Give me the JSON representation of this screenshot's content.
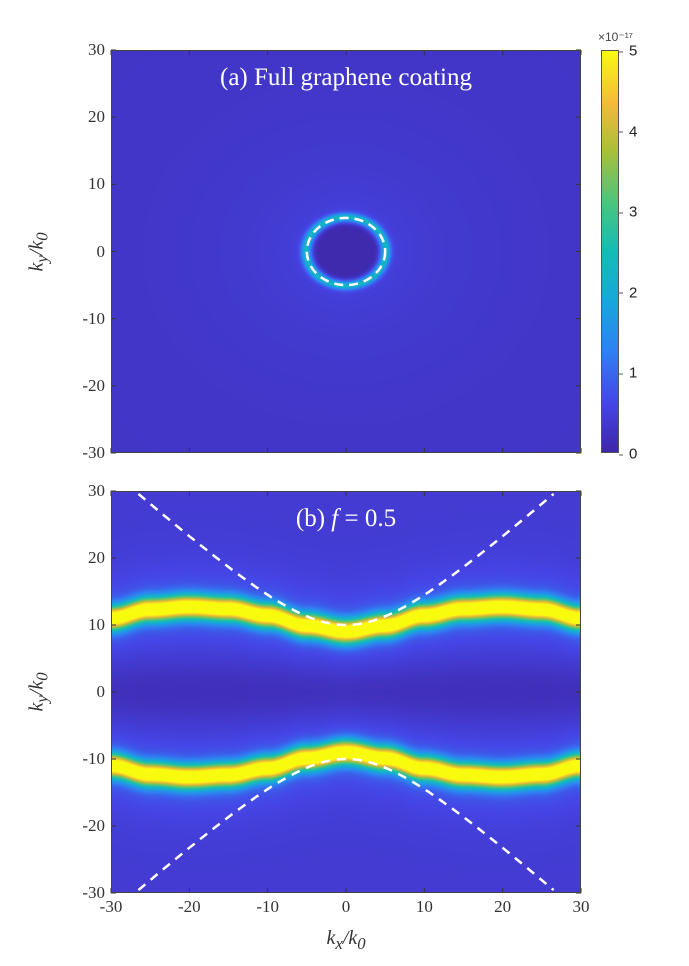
{
  "chart_data": [
    {
      "type": "heatmap",
      "title": "(a) Full graphene coating",
      "xlabel": "k_x/k_0",
      "ylabel": "k_y/k_0",
      "xlim": [
        -30,
        30
      ],
      "ylim": [
        -30,
        30
      ],
      "xticks": [
        -30,
        -20,
        -10,
        0,
        10,
        20,
        30
      ],
      "yticks": [
        -30,
        -20,
        -10,
        0,
        10,
        20,
        30
      ],
      "show_xtick_labels": false,
      "background_value": 0.3,
      "ring": {
        "radius": 5,
        "peak_value": 2.0,
        "dashed_overlay": true
      },
      "inner_value": 0.05
    },
    {
      "type": "heatmap",
      "title": "(b) f = 0.5",
      "xlabel": "k_x/k_0",
      "ylabel": "k_y/k_0",
      "xlim": [
        -30,
        30
      ],
      "ylim": [
        -30,
        30
      ],
      "xticks": [
        -30,
        -20,
        -10,
        0,
        10,
        20,
        30
      ],
      "yticks": [
        -30,
        -20,
        -10,
        0,
        10,
        20,
        30
      ],
      "background_value": 0.4,
      "band_peak_value": 5,
      "band_center": {
        "kx": [
          -30,
          -25,
          -20,
          -15,
          -10,
          -5,
          0,
          5,
          10,
          15,
          20,
          25,
          30
        ],
        "ky": [
          11,
          12.3,
          12.7,
          12.4,
          11.4,
          9.9,
          9,
          9.9,
          11.4,
          12.4,
          12.7,
          12.3,
          11
        ]
      },
      "dashed_hyperbola": {
        "ky0": 10,
        "slope": 1.05
      }
    }
  ],
  "colorbar": {
    "min": 0,
    "max": 5,
    "ticks": [
      "0",
      "1",
      "2",
      "3",
      "4",
      "5"
    ],
    "exponent": "×10⁻¹⁷"
  },
  "labels": {
    "a_title": "(a) Full graphene coating",
    "b_title_pre": "(b) ",
    "b_title_f": "f",
    "b_title_post": " = 0.5",
    "ylabel_k": "k",
    "ylabel_sub": "y",
    "ylabel_den": "/k",
    "ylabel_den_sub": "0",
    "xlabel_k": "k",
    "xlabel_sub": "x"
  }
}
